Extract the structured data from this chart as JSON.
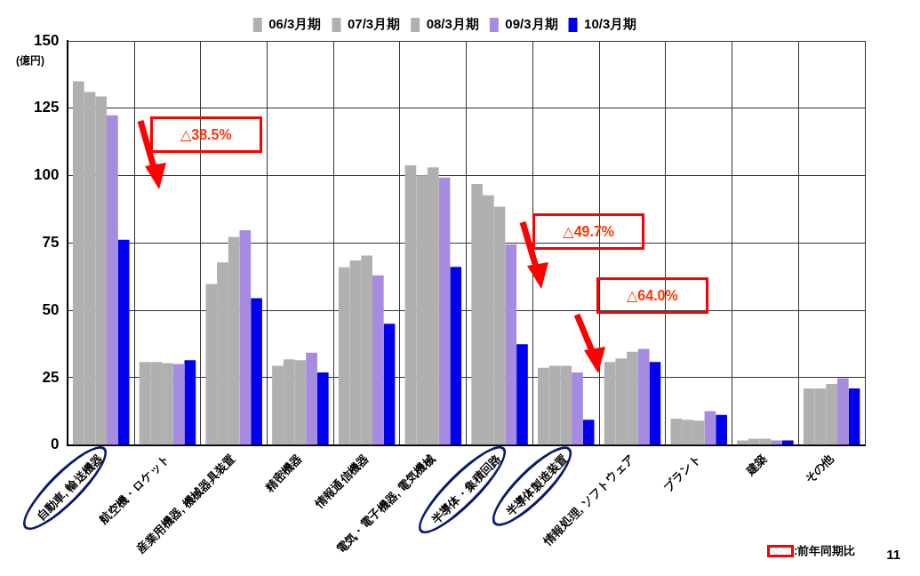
{
  "chart_data": {
    "type": "bar",
    "ylabel": "(億円)",
    "categories": [
      "自動車, 輸送機器",
      "航空機・ロケット",
      "産業用機器, 機械器具装置",
      "精密機器",
      "情報通信機器",
      "電気・電子機器, 電気機械",
      "半導体・集積回路",
      "半導体製造装置",
      "情報処理, ソフトウェア",
      "プラント",
      "建築",
      "その他"
    ],
    "series": [
      {
        "name": "06/3月期",
        "color": "#b0b0b0",
        "values": [
          135,
          30.8,
          59.8,
          29.4,
          66,
          103.8,
          96.9,
          28.7,
          30.8,
          9.8,
          1.7,
          21
        ]
      },
      {
        "name": "07/3月期",
        "color": "#b0b0b0",
        "values": [
          131,
          30.8,
          67.8,
          31.8,
          68.5,
          100.1,
          92.7,
          29.4,
          32.2,
          9.4,
          2.4,
          21
        ]
      },
      {
        "name": "08/3月期",
        "color": "#b0b0b0",
        "values": [
          129.4,
          30.4,
          77.3,
          31.5,
          70.3,
          103.1,
          88.5,
          29.4,
          34.6,
          9.1,
          2.4,
          22.7
        ]
      },
      {
        "name": "09/3月期",
        "color": "#a78be0",
        "values": [
          122.4,
          30.1,
          79.7,
          34.3,
          63,
          99.3,
          74.5,
          27,
          35.7,
          12.6,
          1.7,
          24.8
        ]
      },
      {
        "name": "10/3月期",
        "color": "#0000ee",
        "values": [
          76.2,
          31.5,
          54.5,
          27,
          45,
          66.1,
          37.4,
          9.4,
          30.8,
          11.2,
          1.7,
          21
        ]
      }
    ],
    "ylim": [
      0,
      150
    ],
    "yticks": [
      0,
      25,
      50,
      75,
      100,
      125,
      150
    ],
    "grid": true,
    "legend": "top",
    "annotations": [
      "△38.5%",
      "△49.7%",
      "△64.0%",
      ":前年同期比",
      "11"
    ]
  }
}
